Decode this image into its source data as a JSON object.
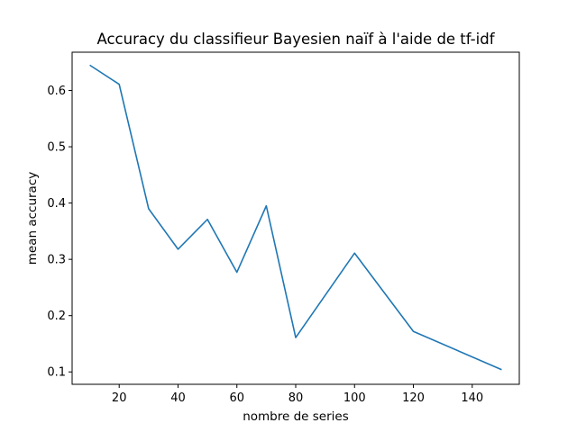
{
  "colors": {
    "line": "#1f77b4",
    "axes": "#000000",
    "background": "#ffffff"
  },
  "chart_data": {
    "type": "line",
    "title": "Accuracy du classifieur Bayesien naïf à l'aide de tf-idf",
    "xlabel": "nombre de series",
    "ylabel": "mean accuracy",
    "xlim": [
      4,
      156
    ],
    "ylim": [
      0.078,
      0.668
    ],
    "xticks": [
      20,
      40,
      60,
      80,
      100,
      120,
      140
    ],
    "yticks": [
      0.1,
      0.2,
      0.3,
      0.4,
      0.5,
      0.6
    ],
    "xtick_labels": [
      "20",
      "40",
      "60",
      "80",
      "100",
      "120",
      "140"
    ],
    "ytick_labels": [
      "0.1",
      "0.2",
      "0.3",
      "0.4",
      "0.5",
      "0.6"
    ],
    "grid": false,
    "legend": "none",
    "series": [
      {
        "x": [
          10,
          20,
          30,
          40,
          50,
          60,
          70,
          80,
          100,
          120,
          150
        ],
        "y": [
          0.645,
          0.611,
          0.39,
          0.318,
          0.371,
          0.277,
          0.395,
          0.161,
          0.311,
          0.172,
          0.104
        ]
      }
    ]
  }
}
